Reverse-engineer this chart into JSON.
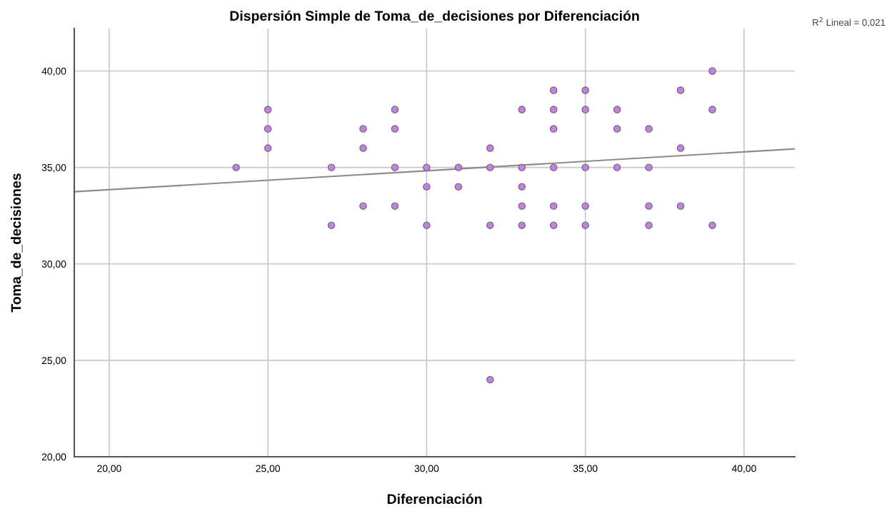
{
  "chart_data": {
    "type": "scatter",
    "title": "Dispersión Simple de Toma_de_decisiones por Diferenciación",
    "xlabel": "Diferenciación",
    "ylabel": "Toma_de_decisiones",
    "annotations": [
      "R$^{2}$ Lineal = 0,021"
    ],
    "series": [
      {
        "color": "#c183e0",
        "marker": "circle",
        "x": [
          24,
          25,
          25,
          25,
          27,
          27,
          28,
          28,
          28,
          29,
          29,
          29,
          29,
          30,
          30,
          30,
          31,
          31,
          32,
          32,
          32,
          32,
          33,
          33,
          33,
          33,
          33,
          34,
          34,
          34,
          34,
          34,
          34,
          35,
          35,
          35,
          35,
          35,
          36,
          36,
          36,
          37,
          37,
          37,
          37,
          38,
          38,
          38,
          39,
          39,
          39
        ],
        "values": [
          35,
          38,
          37,
          36,
          35,
          32,
          37,
          36,
          33,
          38,
          37,
          35,
          33,
          35,
          34,
          32,
          35,
          34,
          36,
          35,
          32,
          24,
          38,
          35,
          34,
          33,
          32,
          39,
          38,
          37,
          35,
          33,
          32,
          39,
          38,
          35,
          33,
          32,
          38,
          37,
          35,
          37,
          35,
          33,
          32,
          39,
          36,
          33,
          40,
          38,
          32
        ]
      },
      {
        "type": "line",
        "color": "#8c8c8c",
        "marker": "none",
        "line_style": "solid",
        "x": [
          18.9,
          41.6
        ],
        "values": [
          33.74,
          35.96
        ]
      }
    ],
    "xlim": [
      18.9,
      41.6
    ],
    "ylim": [
      20,
      42.2
    ],
    "xticks": [
      {
        "value": 20,
        "label": "20,00"
      },
      {
        "value": 25,
        "label": "25,00"
      },
      {
        "value": 30,
        "label": "30,00"
      },
      {
        "value": 35,
        "label": "35,00"
      },
      {
        "value": 40,
        "label": "40,00"
      }
    ],
    "yticks": [
      {
        "value": 20,
        "label": "20,00"
      },
      {
        "value": 25,
        "label": "25,00"
      },
      {
        "value": 30,
        "label": "30,00"
      },
      {
        "value": 35,
        "label": "35,00"
      },
      {
        "value": 40,
        "label": "40,00"
      }
    ],
    "grid": true
  }
}
